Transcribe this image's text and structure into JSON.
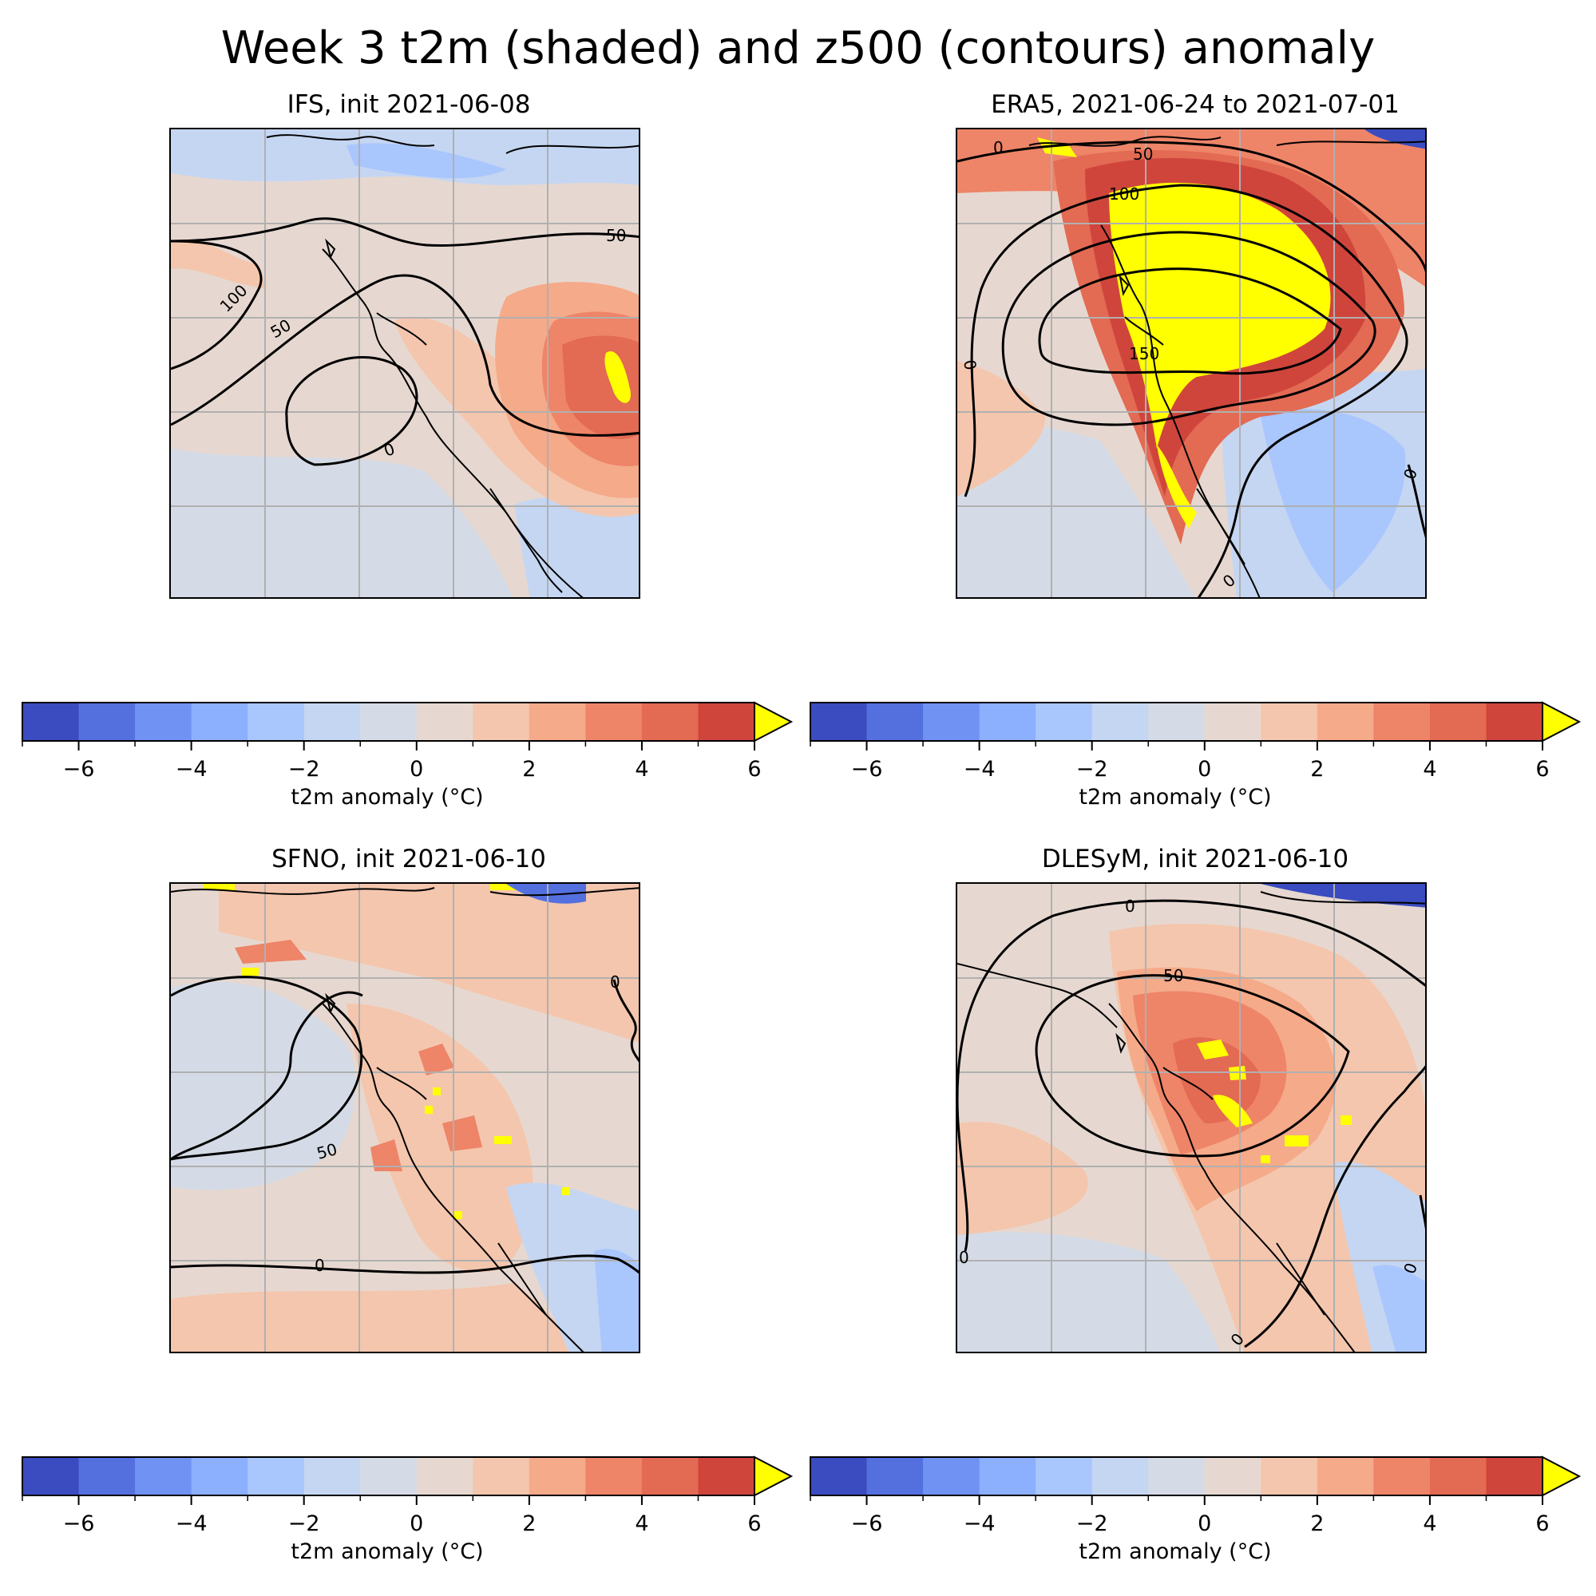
{
  "figure": {
    "title": "Week 3 t2m (shaded) and z500 (contours) anomaly"
  },
  "panels": [
    {
      "title": "IFS, init 2021-06-08",
      "contour_labels": [
        "50",
        "100",
        "50",
        "0"
      ]
    },
    {
      "title": "ERA5, 2021-06-24 to 2021-07-01",
      "contour_labels": [
        "0",
        "50",
        "100",
        "150",
        "0",
        "0",
        "0"
      ]
    },
    {
      "title": "SFNO, init 2021-06-10",
      "contour_labels": [
        "0",
        "50",
        "0"
      ]
    },
    {
      "title": "DLESyM, init 2021-06-10",
      "contour_labels": [
        "0",
        "50",
        "0",
        "0",
        "0"
      ]
    }
  ],
  "colorbar": {
    "label": "t2m anomaly (°C)",
    "ticks": [
      "−6",
      "−4",
      "−2",
      "0",
      "2",
      "4",
      "6"
    ],
    "tick_values": [
      -6,
      -4,
      -2,
      0,
      2,
      4,
      6
    ],
    "range": [
      -7,
      6
    ],
    "extend": "max",
    "colors": [
      "#3a4cc0",
      "#5470de",
      "#6f92f3",
      "#8caffe",
      "#a9c6fd",
      "#c5d6f2",
      "#d4dbe6",
      "#e6d8d0",
      "#f4c6ad",
      "#f5aa89",
      "#ee8468",
      "#e36a53",
      "#cf453c",
      "#ffff00"
    ]
  },
  "icons": [
    "coastline-lines",
    "gridlines",
    "colorbar-extend-arrow"
  ]
}
